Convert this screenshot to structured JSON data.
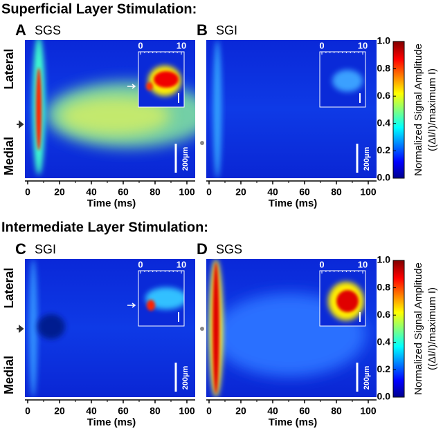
{
  "sections": [
    {
      "title": "Superficial Layer Stimulation:",
      "panels": [
        {
          "letter": "A",
          "label": "SGS"
        },
        {
          "letter": "B",
          "label": "SGI"
        }
      ]
    },
    {
      "title": "Intermediate Layer Stimulation:",
      "panels": [
        {
          "letter": "C",
          "label": "SGI"
        },
        {
          "letter": "D",
          "label": "SGS"
        }
      ]
    }
  ],
  "axis_labels": {
    "lateral": "Lateral",
    "medial": "Medial"
  },
  "time_axis": {
    "label": "Time (ms)",
    "xlim": [
      0,
      100
    ],
    "xticks": [
      0,
      20,
      40,
      60,
      80,
      100
    ]
  },
  "inset_axis": {
    "xlim": [
      0,
      10
    ],
    "xticks": [
      0,
      10
    ]
  },
  "scale_bar": "200µm",
  "colorbar": {
    "label": "Normalized Signal Amplitude",
    "sublabel": "((ΔI/I)/maximum I)",
    "lim": [
      0,
      1
    ],
    "ticks": [
      {
        "value": 0,
        "label": "0.0"
      },
      {
        "value": 0.2,
        "label": "0.2"
      },
      {
        "value": 0.4,
        "label": "0.4"
      },
      {
        "value": 0.6,
        "label": "0.6"
      },
      {
        "value": 0.8,
        "label": "0.8"
      },
      {
        "value": 1,
        "label": "1.0"
      }
    ]
  }
}
